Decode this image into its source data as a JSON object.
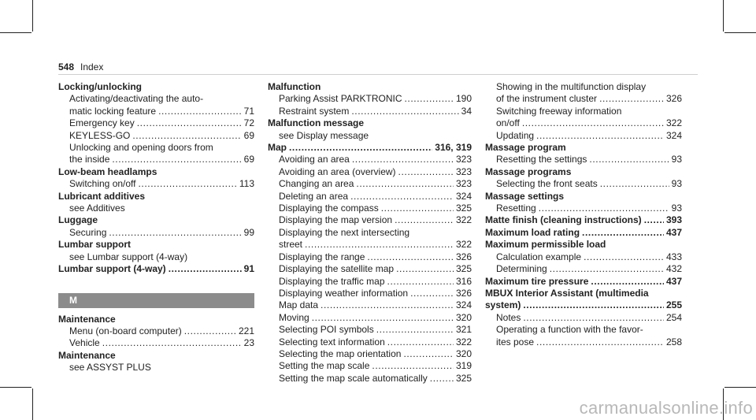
{
  "page": {
    "number": "548",
    "section": "Index"
  },
  "columns": [
    {
      "name": "col1",
      "entries": [
        {
          "k": "h",
          "text": "Locking/unlocking"
        },
        {
          "k": "s",
          "text": "Activating/deactivating the auto-"
        },
        {
          "k": "s",
          "text": "matic locking feature",
          "page": "71"
        },
        {
          "k": "s",
          "text": "Emergency key",
          "page": "72"
        },
        {
          "k": "s",
          "text": "KEYLESS-GO",
          "page": "69"
        },
        {
          "k": "s",
          "text": "Unlocking and opening doors from"
        },
        {
          "k": "s",
          "text": "the inside",
          "page": "69"
        },
        {
          "k": "h",
          "text": "Low-beam headlamps"
        },
        {
          "k": "s",
          "text": "Switching on/off",
          "page": "113"
        },
        {
          "k": "h",
          "text": "Lubricant additives"
        },
        {
          "k": "s",
          "text": "see Additives"
        },
        {
          "k": "h",
          "text": "Luggage"
        },
        {
          "k": "s",
          "text": "Securing",
          "page": "99"
        },
        {
          "k": "h",
          "text": "Lumbar support"
        },
        {
          "k": "s",
          "text": "see Lumbar support (4-way)"
        },
        {
          "k": "h",
          "text": "Lumbar support (4-way)",
          "page": "91"
        },
        {
          "k": "letter",
          "text": "M"
        },
        {
          "k": "h",
          "text": "Maintenance"
        },
        {
          "k": "s",
          "text": "Menu (on-board computer)",
          "page": "221"
        },
        {
          "k": "s",
          "text": "Vehicle",
          "page": "23"
        },
        {
          "k": "h",
          "text": "Maintenance"
        },
        {
          "k": "s",
          "text": "see ASSYST PLUS"
        }
      ]
    },
    {
      "name": "col2",
      "entries": [
        {
          "k": "h",
          "text": "Malfunction"
        },
        {
          "k": "s",
          "text": "Parking Assist PARKTRONIC",
          "page": "190"
        },
        {
          "k": "s",
          "text": "Restraint system",
          "page": "34"
        },
        {
          "k": "h",
          "text": "Malfunction message"
        },
        {
          "k": "s",
          "text": "see Display message"
        },
        {
          "k": "h",
          "text": "Map",
          "page": "316, 319"
        },
        {
          "k": "s",
          "text": "Avoiding an area",
          "page": "323"
        },
        {
          "k": "s",
          "text": "Avoiding an area (overview)",
          "page": "323"
        },
        {
          "k": "s",
          "text": "Changing an area",
          "page": "323"
        },
        {
          "k": "s",
          "text": "Deleting an area",
          "page": "324"
        },
        {
          "k": "s",
          "text": "Displaying the compass",
          "page": "325"
        },
        {
          "k": "s",
          "text": "Displaying the map version",
          "page": "322"
        },
        {
          "k": "s",
          "text": "Displaying the next intersecting"
        },
        {
          "k": "s",
          "text": "street",
          "page": "322"
        },
        {
          "k": "s",
          "text": "Displaying the range",
          "page": "326"
        },
        {
          "k": "s",
          "text": "Displaying the satellite map",
          "page": "325"
        },
        {
          "k": "s",
          "text": "Displaying the traffic map",
          "page": "316"
        },
        {
          "k": "s",
          "text": "Displaying weather information",
          "page": "326"
        },
        {
          "k": "s",
          "text": "Map data",
          "page": "324"
        },
        {
          "k": "s",
          "text": "Moving",
          "page": "320"
        },
        {
          "k": "s",
          "text": "Selecting POI symbols",
          "page": "321"
        },
        {
          "k": "s",
          "text": "Selecting text information",
          "page": "322"
        },
        {
          "k": "s",
          "text": "Selecting the map orientation",
          "page": "320"
        },
        {
          "k": "s",
          "text": "Setting the map scale",
          "page": "319"
        },
        {
          "k": "s",
          "text": "Setting the map scale automatically",
          "page": "325"
        }
      ]
    },
    {
      "name": "col3",
      "entries": [
        {
          "k": "s",
          "text": "Showing in the multifunction display"
        },
        {
          "k": "s",
          "text": "of the instrument cluster",
          "page": "326"
        },
        {
          "k": "s",
          "text": "Switching freeway information"
        },
        {
          "k": "s",
          "text": "on/off",
          "page": "322"
        },
        {
          "k": "s",
          "text": "Updating",
          "page": "324"
        },
        {
          "k": "h",
          "text": "Massage program"
        },
        {
          "k": "s",
          "text": "Resetting the settings",
          "page": "93"
        },
        {
          "k": "h",
          "text": "Massage programs"
        },
        {
          "k": "s",
          "text": "Selecting the front seats",
          "page": "93"
        },
        {
          "k": "h",
          "text": "Massage settings"
        },
        {
          "k": "s",
          "text": "Resetting",
          "page": "93"
        },
        {
          "k": "h",
          "text": "Matte finish (cleaning instructions)",
          "page": "393"
        },
        {
          "k": "h",
          "text": "Maximum load rating",
          "page": "437"
        },
        {
          "k": "h",
          "text": "Maximum permissible load"
        },
        {
          "k": "s",
          "text": "Calculation example",
          "page": "433"
        },
        {
          "k": "s",
          "text": "Determining",
          "page": "432"
        },
        {
          "k": "h",
          "text": "Maximum tire pressure",
          "page": "437"
        },
        {
          "k": "h",
          "text": "MBUX Interior Assistant (multimedia"
        },
        {
          "k": "h",
          "text": "system)",
          "page": "255"
        },
        {
          "k": "s",
          "text": "Notes",
          "page": "254"
        },
        {
          "k": "s",
          "text": "Operating a function with the favor-"
        },
        {
          "k": "s",
          "text": "ites pose",
          "page": "258"
        }
      ]
    }
  ],
  "watermark": "carmanualsonline.info"
}
